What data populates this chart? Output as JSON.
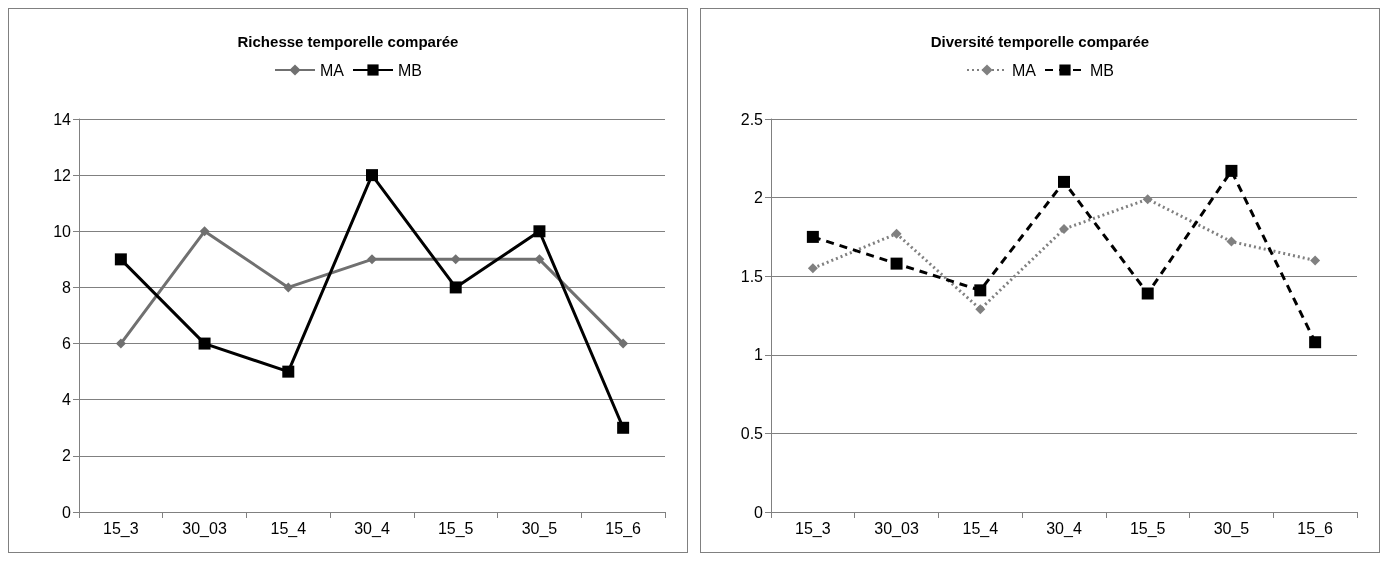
{
  "chart_data": [
    {
      "type": "line",
      "title": "Richesse temporelle comparée",
      "categories": [
        "15_3",
        "30_03",
        "15_4",
        "30_4",
        "15_5",
        "30_5",
        "15_6"
      ],
      "ylim": [
        0,
        14
      ],
      "yticks": [
        0,
        2,
        4,
        6,
        8,
        10,
        12,
        14
      ],
      "grid": "y",
      "legend": "top",
      "series": [
        {
          "name": "MA",
          "color": "#707070",
          "marker": "diamond",
          "line_style": "solid",
          "values": [
            6,
            10,
            8,
            9,
            9,
            9,
            6
          ]
        },
        {
          "name": "MB",
          "color": "#000000",
          "marker": "square",
          "line_style": "solid",
          "values": [
            9,
            6,
            5,
            12,
            8,
            10,
            3
          ]
        }
      ]
    },
    {
      "type": "line",
      "title": "Diversité temporelle comparée",
      "categories": [
        "15_3",
        "30_03",
        "15_4",
        "30_4",
        "15_5",
        "30_5",
        "15_6"
      ],
      "ylim": [
        0,
        2.5
      ],
      "yticks": [
        0,
        0.5,
        1,
        1.5,
        2,
        2.5
      ],
      "grid": "y",
      "legend": "top",
      "series": [
        {
          "name": "MA",
          "color": "#808080",
          "marker": "diamond",
          "line_style": "dotted",
          "values": [
            1.55,
            1.77,
            1.29,
            1.8,
            1.99,
            1.72,
            1.6
          ]
        },
        {
          "name": "MB",
          "color": "#000000",
          "marker": "square",
          "line_style": "dashed",
          "values": [
            1.75,
            1.58,
            1.41,
            2.1,
            1.39,
            2.17,
            1.08
          ]
        }
      ]
    }
  ]
}
